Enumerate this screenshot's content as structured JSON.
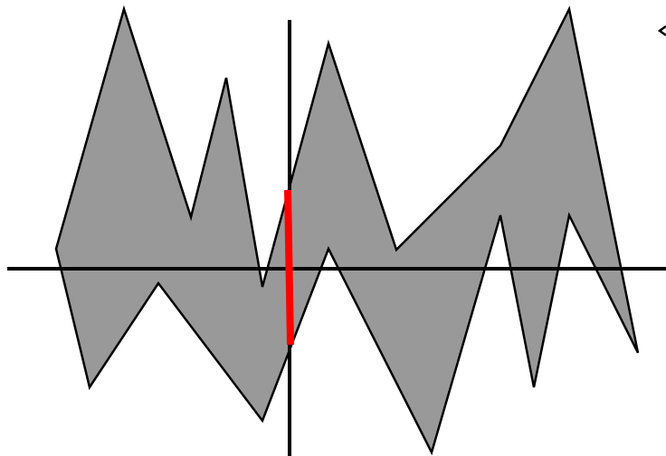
{
  "diagram": {
    "colors": {
      "background": "#ffffff",
      "polygon_fill": "#999999",
      "outline": "#000000",
      "highlight": "#ff0000"
    },
    "icons": {
      "edge_mark": "arrowhead-icon"
    }
  }
}
